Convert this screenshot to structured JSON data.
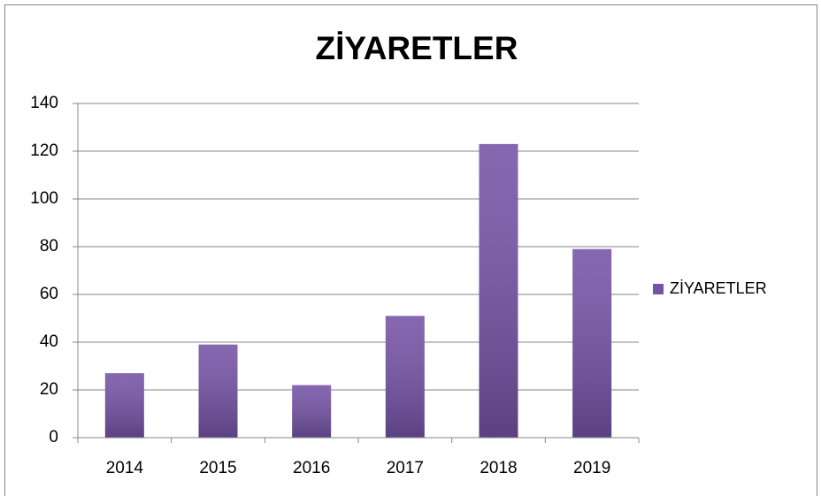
{
  "chart_data": {
    "type": "bar",
    "title": "ZİYARETLER",
    "categories": [
      "2014",
      "2015",
      "2016",
      "2017",
      "2018",
      "2019"
    ],
    "series": [
      {
        "name": "ZİYARETLER",
        "color": "#7553a6",
        "values": [
          27,
          39,
          22,
          51,
          123,
          79
        ]
      }
    ],
    "ylim": [
      0,
      140
    ],
    "yticks": [
      0,
      20,
      40,
      60,
      80,
      100,
      120,
      140
    ],
    "grid": true,
    "legend": "right"
  }
}
